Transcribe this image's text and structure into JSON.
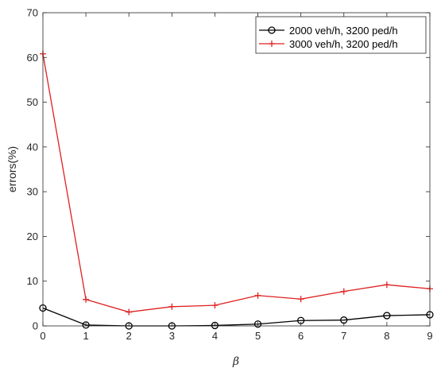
{
  "chart_data": {
    "type": "line",
    "title": "",
    "xlabel": "β",
    "ylabel": "errors(%)",
    "xlim": [
      0,
      9
    ],
    "ylim": [
      0,
      70
    ],
    "xticks": [
      0,
      1,
      2,
      3,
      4,
      5,
      6,
      7,
      8,
      9
    ],
    "yticks": [
      0,
      10,
      20,
      30,
      40,
      50,
      60,
      70
    ],
    "grid": false,
    "legend_position": "top-right",
    "x": [
      0,
      1,
      2,
      3,
      4,
      5,
      6,
      7,
      8,
      9
    ],
    "series": [
      {
        "name": "2000 veh/h, 3200 ped/h",
        "marker": "circle",
        "color": "#000000",
        "values": [
          4.0,
          0.2,
          0.0,
          0.0,
          0.1,
          0.4,
          1.2,
          1.3,
          2.3,
          2.5
        ]
      },
      {
        "name": "3000 veh/h, 3200 ped/h",
        "marker": "plus",
        "color": "#e02020",
        "values": [
          60.8,
          5.9,
          3.1,
          4.3,
          4.6,
          6.8,
          6.0,
          7.7,
          9.2,
          8.3
        ]
      }
    ]
  }
}
